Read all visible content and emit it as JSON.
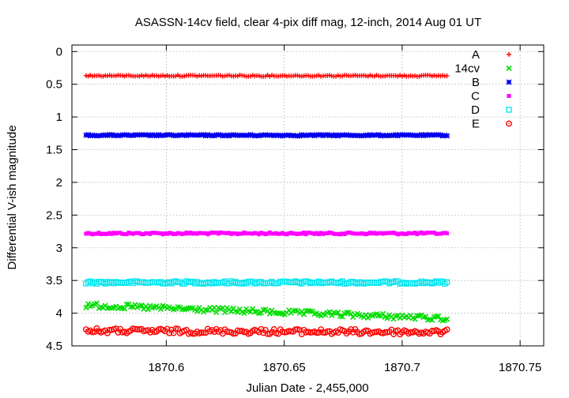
{
  "chart_data": {
    "type": "scatter",
    "title": "ASASSN-14cv field, clear 4-pix diff mag, 12-inch, 2014 Aug 01 UT",
    "xlabel": "Julian Date - 2,455,000",
    "ylabel": "Differential V-ish magnitude",
    "xlim": [
      1870.56,
      1870.76
    ],
    "ylim": [
      4.5,
      -0.1
    ],
    "y_inverted": true,
    "grid": true,
    "legend_position": "top-right",
    "x_ticks": [
      "1870.6",
      "1870.65",
      "1870.7",
      "1870.75"
    ],
    "x_tick_values": [
      1870.6,
      1870.65,
      1870.7,
      1870.75
    ],
    "y_ticks": [
      "0",
      "0.5",
      "1",
      "1.5",
      "2",
      "2.5",
      "3",
      "3.5",
      "4",
      "4.5"
    ],
    "y_tick_values": [
      0,
      0.5,
      1,
      1.5,
      2,
      2.5,
      3,
      3.5,
      4,
      4.5
    ],
    "x_range_observed": [
      1870.566,
      1870.719
    ],
    "series": [
      {
        "name": "A",
        "marker": "plus",
        "color": "#ff0000",
        "x_range": [
          1870.566,
          1870.719
        ],
        "y_start": 0.37,
        "y_end": 0.37,
        "scatter": 0.01
      },
      {
        "name": "14cv",
        "marker": "cross",
        "color": "#00dd00",
        "x_range": [
          1870.566,
          1870.719
        ],
        "y_start": 3.88,
        "y_end": 4.08,
        "scatter": 0.04
      },
      {
        "name": "B",
        "marker": "star",
        "color": "#0000ee",
        "x_range": [
          1870.566,
          1870.719
        ],
        "y_start": 1.28,
        "y_end": 1.28,
        "scatter": 0.01
      },
      {
        "name": "C",
        "marker": "square-filled",
        "color": "#ff00ff",
        "x_range": [
          1870.566,
          1870.719
        ],
        "y_start": 2.78,
        "y_end": 2.78,
        "scatter": 0.015
      },
      {
        "name": "D",
        "marker": "square-open",
        "color": "#00e5ee",
        "x_range": [
          1870.566,
          1870.719
        ],
        "y_start": 3.53,
        "y_end": 3.53,
        "scatter": 0.02
      },
      {
        "name": "E",
        "marker": "circle-dot",
        "color": "#ff0000",
        "x_range": [
          1870.566,
          1870.719
        ],
        "y_start": 4.27,
        "y_end": 4.29,
        "scatter": 0.04
      }
    ]
  }
}
